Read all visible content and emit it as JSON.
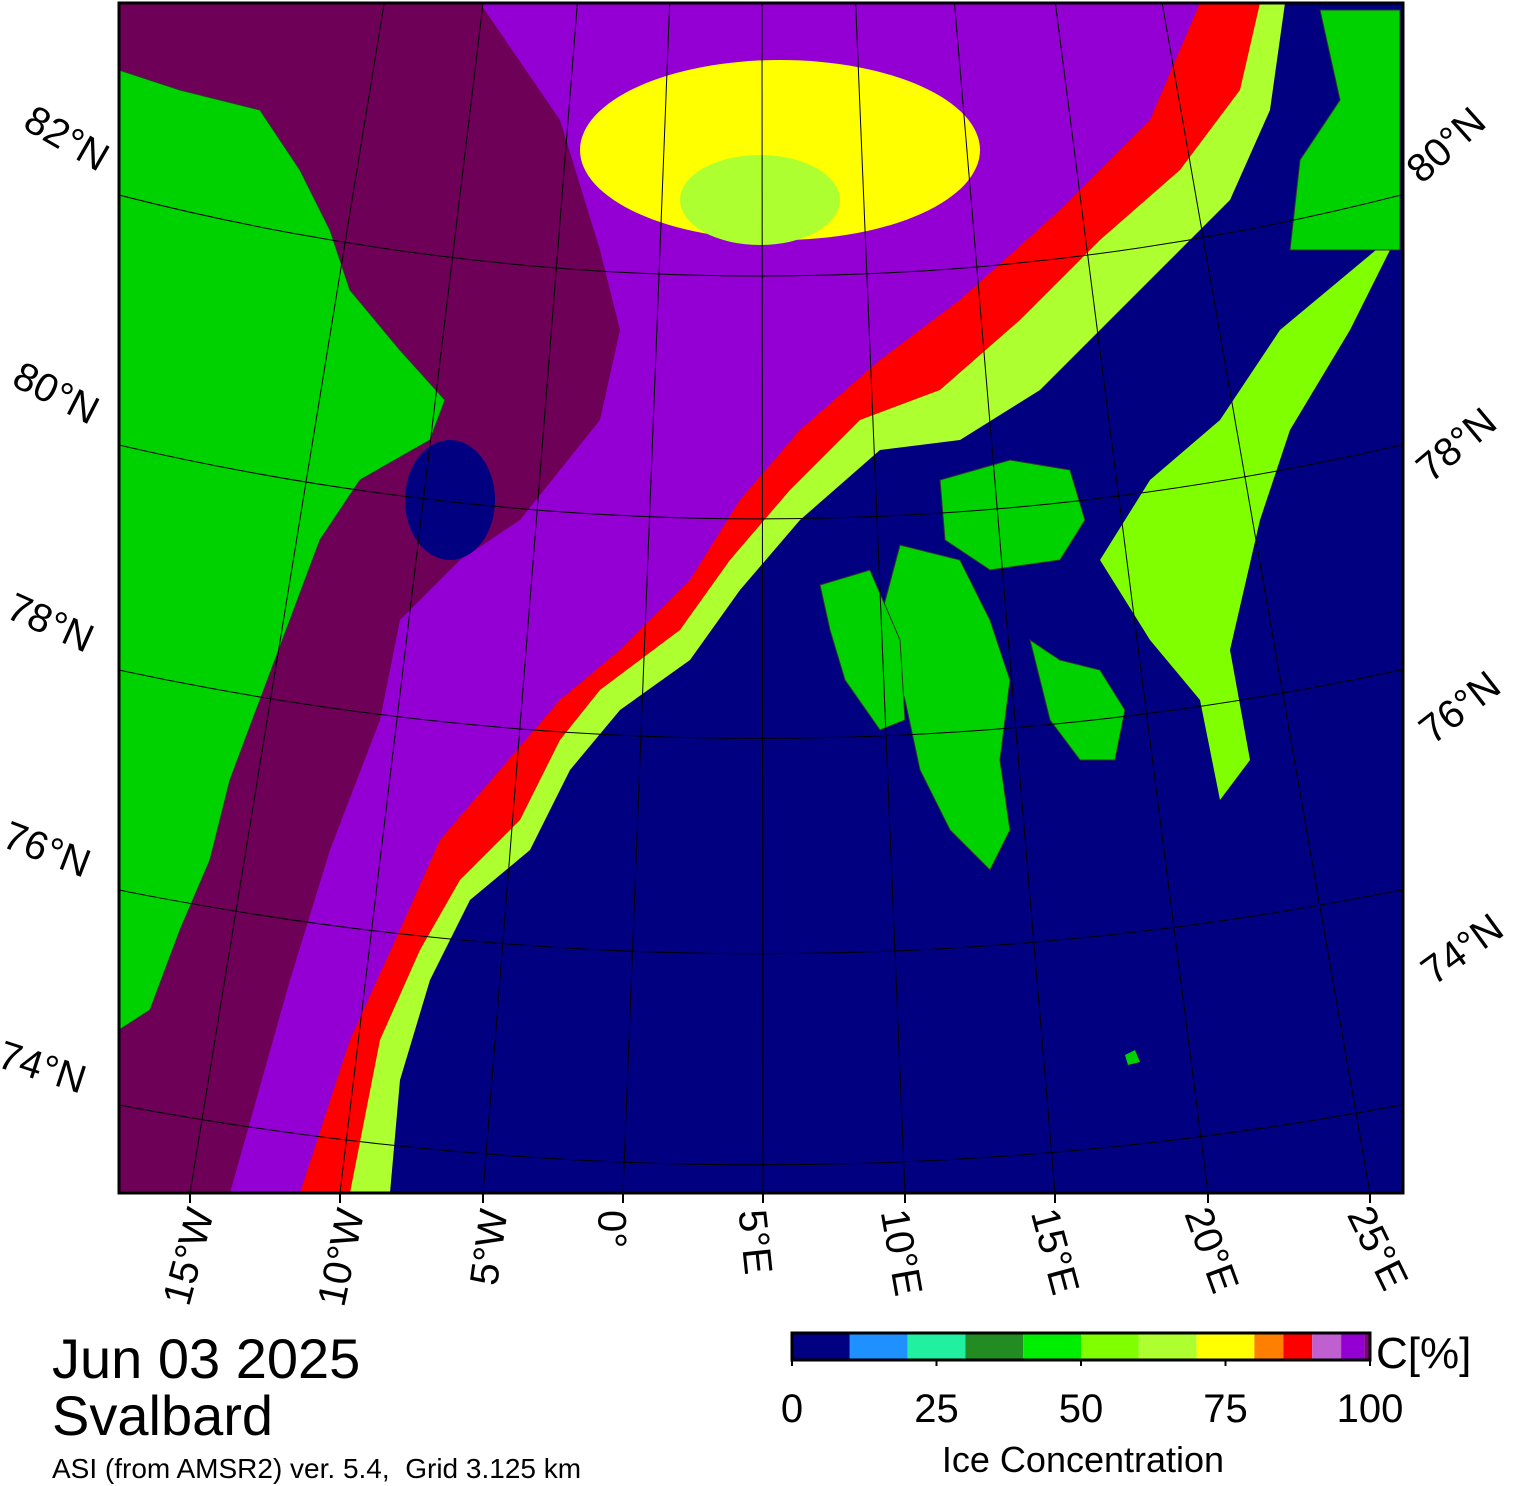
{
  "title": {
    "date": "Jun 03 2025",
    "region": "Svalbard",
    "source": "ASI (from AMSR2) ver. 5.4,  Grid 3.125 km"
  },
  "map": {
    "lat_labels_left": [
      "82°N",
      "80°N",
      "78°N",
      "76°N",
      "74°N"
    ],
    "lat_labels_right": [
      "80°N",
      "78°N",
      "76°N",
      "74°N"
    ],
    "lon_labels": [
      "15°W",
      "10°W",
      "5°W",
      "0°",
      "5°E",
      "10°E",
      "15°E",
      "20°E",
      "25°E"
    ]
  },
  "colorbar": {
    "label": "Ice Concentration",
    "unit": "C[%]",
    "range": [
      0,
      100
    ],
    "bounds": [
      0,
      10,
      20,
      30,
      40,
      50,
      60,
      70,
      80,
      85,
      90,
      95,
      99,
      100
    ],
    "colors": [
      "#000080",
      "#1e90ff",
      "#20f0a0",
      "#228b22",
      "#00ee00",
      "#7fff00",
      "#adff2f",
      "#ffff00",
      "#ff8000",
      "#ff0000",
      "#c060d0",
      "#9400d3",
      "#800080"
    ],
    "ticks": [
      0,
      25,
      50,
      75,
      100
    ]
  }
}
